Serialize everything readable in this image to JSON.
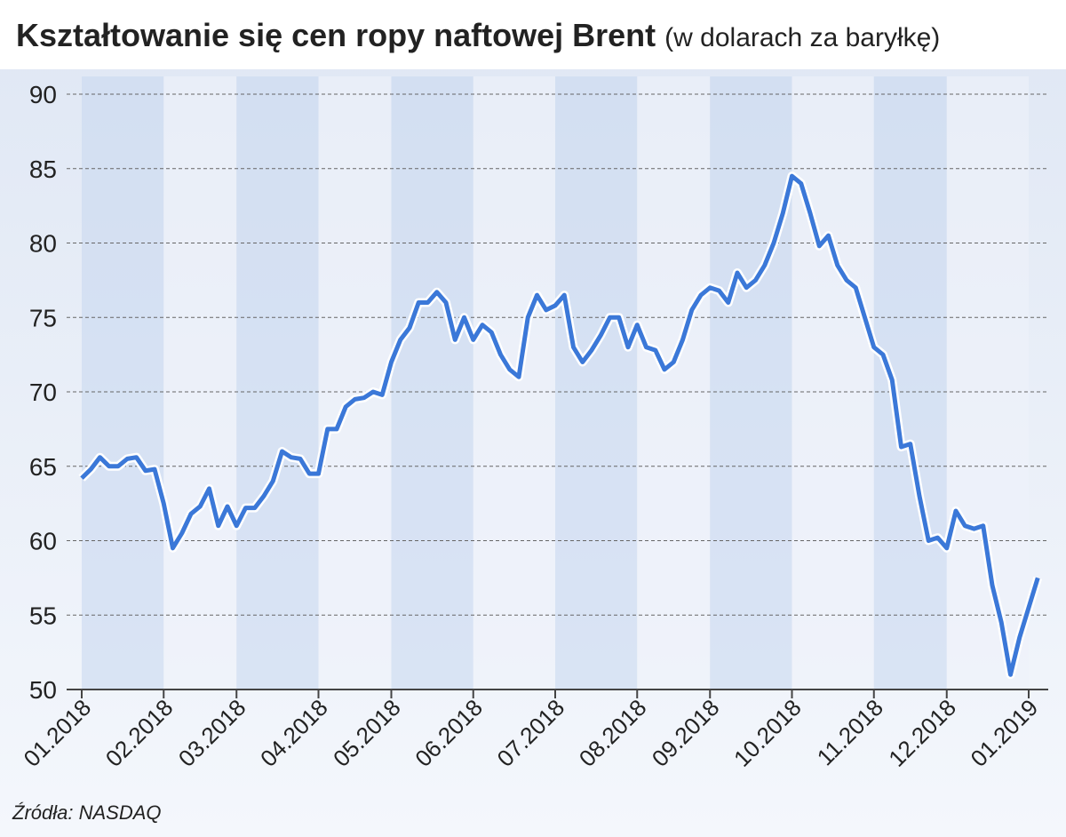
{
  "chart_data": {
    "type": "line",
    "title": "Kształtowanie się cen ropy naftowej Brent",
    "subtitle": "(w dolarach za baryłkę)",
    "source": "Źródła: NASDAQ",
    "categories": [
      "01.2018",
      null,
      null,
      null,
      null,
      null,
      null,
      null,
      null,
      "02.2018",
      null,
      null,
      null,
      null,
      null,
      null,
      null,
      "03.2018",
      null,
      null,
      null,
      null,
      null,
      null,
      null,
      null,
      "04.2018",
      null,
      null,
      null,
      null,
      null,
      null,
      null,
      "05.2018",
      null,
      null,
      null,
      null,
      null,
      null,
      null,
      null,
      "06.2018",
      null,
      null,
      null,
      null,
      null,
      null,
      null,
      null,
      "07.2018",
      null,
      null,
      null,
      null,
      null,
      null,
      null,
      null,
      "08.2018",
      null,
      null,
      null,
      null,
      null,
      null,
      null,
      "09.2018",
      null,
      null,
      null,
      null,
      null,
      null,
      null,
      null,
      "10.2018",
      null,
      null,
      null,
      null,
      null,
      null,
      null,
      null,
      "11.2018",
      null,
      null,
      null,
      null,
      null,
      null,
      null,
      "12.2018",
      null,
      null,
      null,
      null,
      null,
      null,
      null,
      null,
      "01.2019",
      null
    ],
    "series": [
      {
        "name": "Brent",
        "color": "#3b78d8",
        "values": [
          64.2,
          64.8,
          65.6,
          65.0,
          65.0,
          65.5,
          65.6,
          64.7,
          64.8,
          62.5,
          59.5,
          60.5,
          61.8,
          62.3,
          63.5,
          61.0,
          62.3,
          61.0,
          62.2,
          62.2,
          63.0,
          64.0,
          66.0,
          65.6,
          65.5,
          64.5,
          64.5,
          67.5,
          67.5,
          69.0,
          69.5,
          69.6,
          70.0,
          69.8,
          72.0,
          73.5,
          74.3,
          76.0,
          76.0,
          76.7,
          76.0,
          73.5,
          75.0,
          73.5,
          74.5,
          74.0,
          72.5,
          71.5,
          71.0,
          75.0,
          76.5,
          75.5,
          75.8,
          76.5,
          73.0,
          72.0,
          72.8,
          73.8,
          75.0,
          75.0,
          73.0,
          74.5,
          73.0,
          72.8,
          71.5,
          72.0,
          73.5,
          75.5,
          76.5,
          77.0,
          76.8,
          76.0,
          78.0,
          77.0,
          77.5,
          78.5,
          80.0,
          82.0,
          84.5,
          84.0,
          82.0,
          79.8,
          80.5,
          78.5,
          77.5,
          77.0,
          75.0,
          73.0,
          72.5,
          70.8,
          66.3,
          66.5,
          63.0,
          60.0,
          60.2,
          59.5,
          62.0,
          61.0,
          60.8,
          61.0,
          57.0,
          54.5,
          51.0,
          53.5,
          55.5,
          57.5
        ]
      }
    ],
    "ylim": [
      50,
      90
    ],
    "yticks": [
      50,
      55,
      60,
      65,
      70,
      75,
      80,
      85,
      90
    ],
    "grid": true
  }
}
